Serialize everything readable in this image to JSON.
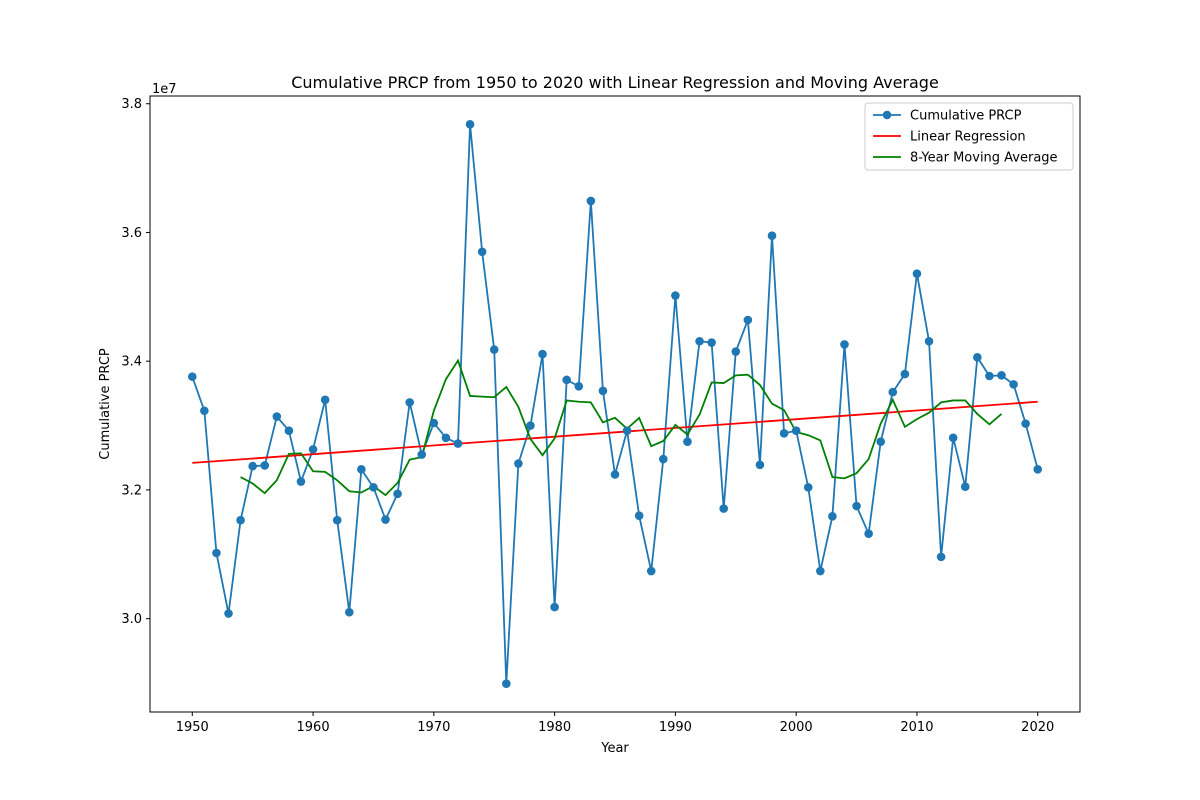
{
  "chart_data": {
    "type": "line",
    "title": "Cumulative PRCP from 1950 to 2020 with Linear Regression and Moving Average",
    "xlabel": "Year",
    "ylabel": "Cumulative PRCP",
    "y_offset_label": "1e7",
    "xlim": [
      1946.5,
      2023.5
    ],
    "ylim": [
      28550000,
      38120000
    ],
    "x_ticks": [
      1950,
      1960,
      1970,
      1980,
      1990,
      2000,
      2010,
      2020
    ],
    "y_ticks": [
      30000000,
      32000000,
      34000000,
      36000000,
      38000000
    ],
    "y_tick_labels": [
      "3.0",
      "3.2",
      "3.4",
      "3.6",
      "3.8"
    ],
    "grid": false,
    "legend_position": "top-right",
    "series": [
      {
        "name": "Cumulative PRCP",
        "color": "#1f77b4",
        "marker": "circle",
        "x": [
          1950,
          1951,
          1952,
          1953,
          1954,
          1955,
          1956,
          1957,
          1958,
          1959,
          1960,
          1961,
          1962,
          1963,
          1964,
          1965,
          1966,
          1967,
          1968,
          1969,
          1970,
          1971,
          1972,
          1973,
          1974,
          1975,
          1976,
          1977,
          1978,
          1979,
          1980,
          1981,
          1982,
          1983,
          1984,
          1985,
          1986,
          1987,
          1988,
          1989,
          1990,
          1991,
          1992,
          1993,
          1994,
          1995,
          1996,
          1997,
          1998,
          1999,
          2000,
          2001,
          2002,
          2003,
          2004,
          2005,
          2006,
          2007,
          2008,
          2009,
          2010,
          2011,
          2012,
          2013,
          2014,
          2015,
          2016,
          2017,
          2018,
          2019,
          2020
        ],
        "values": [
          33760000,
          33230000,
          31020000,
          30080000,
          31530000,
          32370000,
          32380000,
          33140000,
          32920000,
          32130000,
          32630000,
          33400000,
          31530000,
          30100000,
          32320000,
          32040000,
          31540000,
          31940000,
          33360000,
          32550000,
          33040000,
          32810000,
          32720000,
          37680000,
          35700000,
          34180000,
          28990000,
          32410000,
          33000000,
          34110000,
          30180000,
          33710000,
          33610000,
          36490000,
          33540000,
          32240000,
          32920000,
          31600000,
          30740000,
          32480000,
          35020000,
          32750000,
          34310000,
          34290000,
          31710000,
          34150000,
          34640000,
          32390000,
          35950000,
          32880000,
          32920000,
          32040000,
          30740000,
          31590000,
          34260000,
          31750000,
          31320000,
          32750000,
          33520000,
          33800000,
          35360000,
          34310000,
          30960000,
          32810000,
          32050000,
          34060000,
          33770000,
          33780000,
          33640000,
          33030000,
          32320000
        ]
      },
      {
        "name": "Linear Regression",
        "color": "#ff0000",
        "x": [
          1950,
          2020
        ],
        "values": [
          32420000,
          33370000
        ]
      },
      {
        "name": "8-Year Moving Average",
        "color": "#008000",
        "x": [
          1954,
          1955,
          1956,
          1957,
          1958,
          1959,
          1960,
          1961,
          1962,
          1963,
          1964,
          1965,
          1966,
          1967,
          1968,
          1969,
          1970,
          1971,
          1972,
          1973,
          1974,
          1975,
          1976,
          1977,
          1978,
          1979,
          1980,
          1981,
          1982,
          1983,
          1984,
          1985,
          1986,
          1987,
          1988,
          1989,
          1990,
          1991,
          1992,
          1993,
          1994,
          1995,
          1996,
          1997,
          1998,
          1999,
          2000,
          2001,
          2002,
          2003,
          2004,
          2005,
          2006,
          2007,
          2008,
          2009,
          2010,
          2011,
          2012,
          2013,
          2014,
          2015,
          2016,
          2017
        ],
        "values": [
          32200000,
          32100000,
          31950000,
          32150000,
          32560000,
          32570000,
          32290000,
          32280000,
          32150000,
          31980000,
          31960000,
          32060000,
          31920000,
          32110000,
          32470000,
          32510000,
          33230000,
          33720000,
          34010000,
          33460000,
          33450000,
          33440000,
          33600000,
          33290000,
          32790000,
          32540000,
          32800000,
          33390000,
          33370000,
          33360000,
          33050000,
          33120000,
          32950000,
          33120000,
          32680000,
          32760000,
          33010000,
          32860000,
          33170000,
          33670000,
          33660000,
          33780000,
          33790000,
          33630000,
          33340000,
          33240000,
          32900000,
          32850000,
          32770000,
          32200000,
          32180000,
          32260000,
          32480000,
          33030000,
          33400000,
          32980000,
          33100000,
          33200000,
          33360000,
          33390000,
          33390000,
          33180000,
          33020000,
          33180000
        ]
      }
    ]
  }
}
